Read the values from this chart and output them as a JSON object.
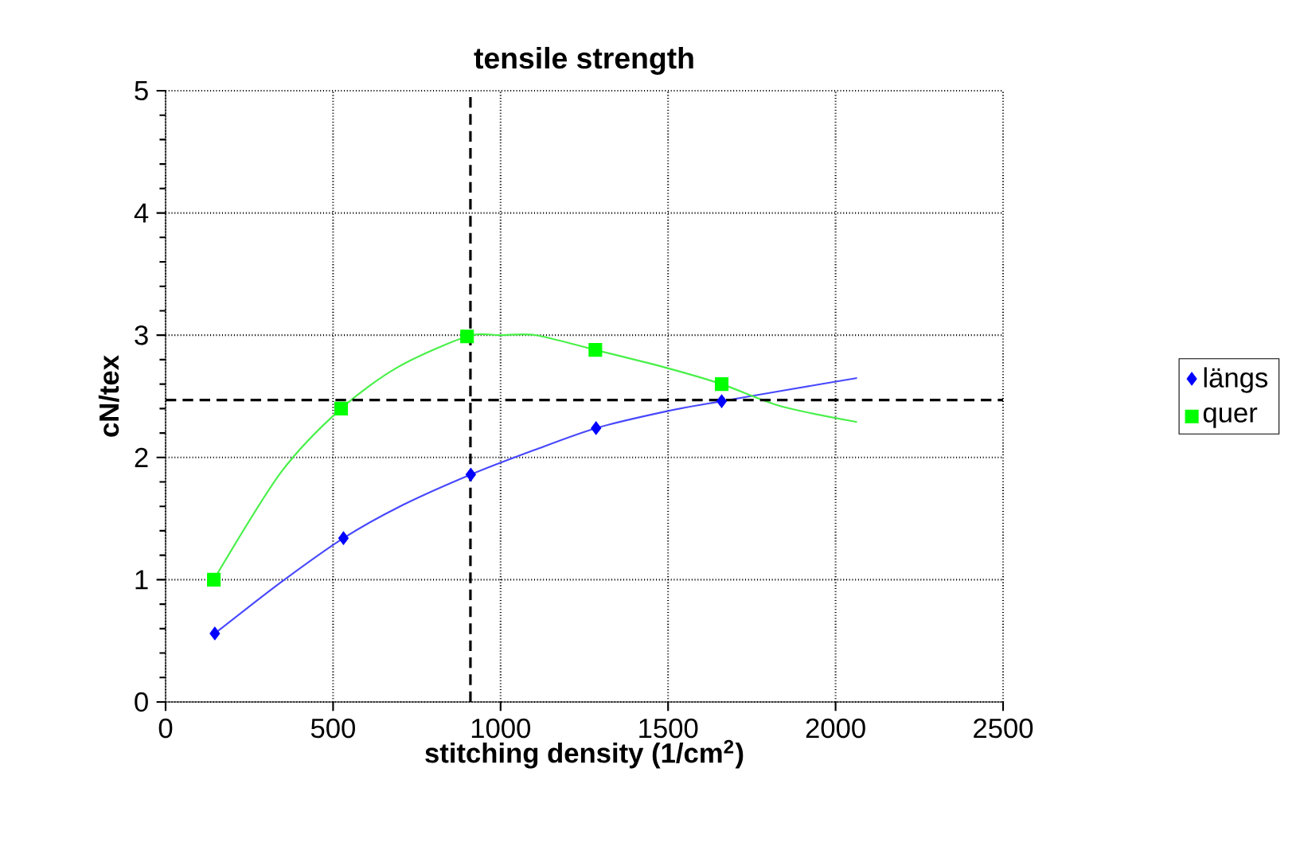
{
  "chart_data": {
    "type": "scatter",
    "title": "tensile strength",
    "xlabel": "stitching density (1/cm$^{2}$)",
    "ylabel": "cN/tex",
    "xlim": [
      0,
      2500
    ],
    "xticks": [
      0,
      500,
      1000,
      1500,
      2000,
      2500
    ],
    "ylim": [
      0,
      5
    ],
    "yticks": [
      0,
      1,
      2,
      3,
      4,
      5
    ],
    "grid": true,
    "legend": "right",
    "series": [
      {
        "name": "längs",
        "color": "#0000ff",
        "marker": "diamond",
        "x": [
          147,
          531,
          911,
          1285,
          1660
        ],
        "values": [
          0.56,
          1.34,
          1.86,
          2.24,
          2.46
        ]
      },
      {
        "name": "quer",
        "color": "#00ff00",
        "marker": "square",
        "x": [
          144,
          524,
          900,
          1283,
          1660
        ],
        "values": [
          1.0,
          2.4,
          2.99,
          2.88,
          2.6
        ]
      },
      {
        "type": "line",
        "color": "#4848ff",
        "x": [
          147,
          345,
          531,
          700,
          911,
          1100,
          1285,
          1500,
          1660,
          1850,
          2064
        ],
        "values": [
          0.56,
          0.98,
          1.34,
          1.6,
          1.86,
          2.06,
          2.24,
          2.38,
          2.46,
          2.55,
          2.65
        ]
      },
      {
        "type": "line",
        "color": "#48f048",
        "x": [
          144,
          345,
          524,
          694,
          900,
          1000,
          1106,
          1283,
          1486,
          1660,
          1835,
          2064
        ],
        "values": [
          1.0,
          1.88,
          2.4,
          2.74,
          2.99,
          3.0,
          3.0,
          2.88,
          2.74,
          2.6,
          2.42,
          2.29
        ]
      }
    ],
    "ref_lines": [
      {
        "axis": "x",
        "value": 910,
        "line_style": "dashed",
        "color": "#000000"
      },
      {
        "axis": "y",
        "value": 2.47,
        "line_style": "dashed",
        "color": "#000000"
      }
    ]
  }
}
